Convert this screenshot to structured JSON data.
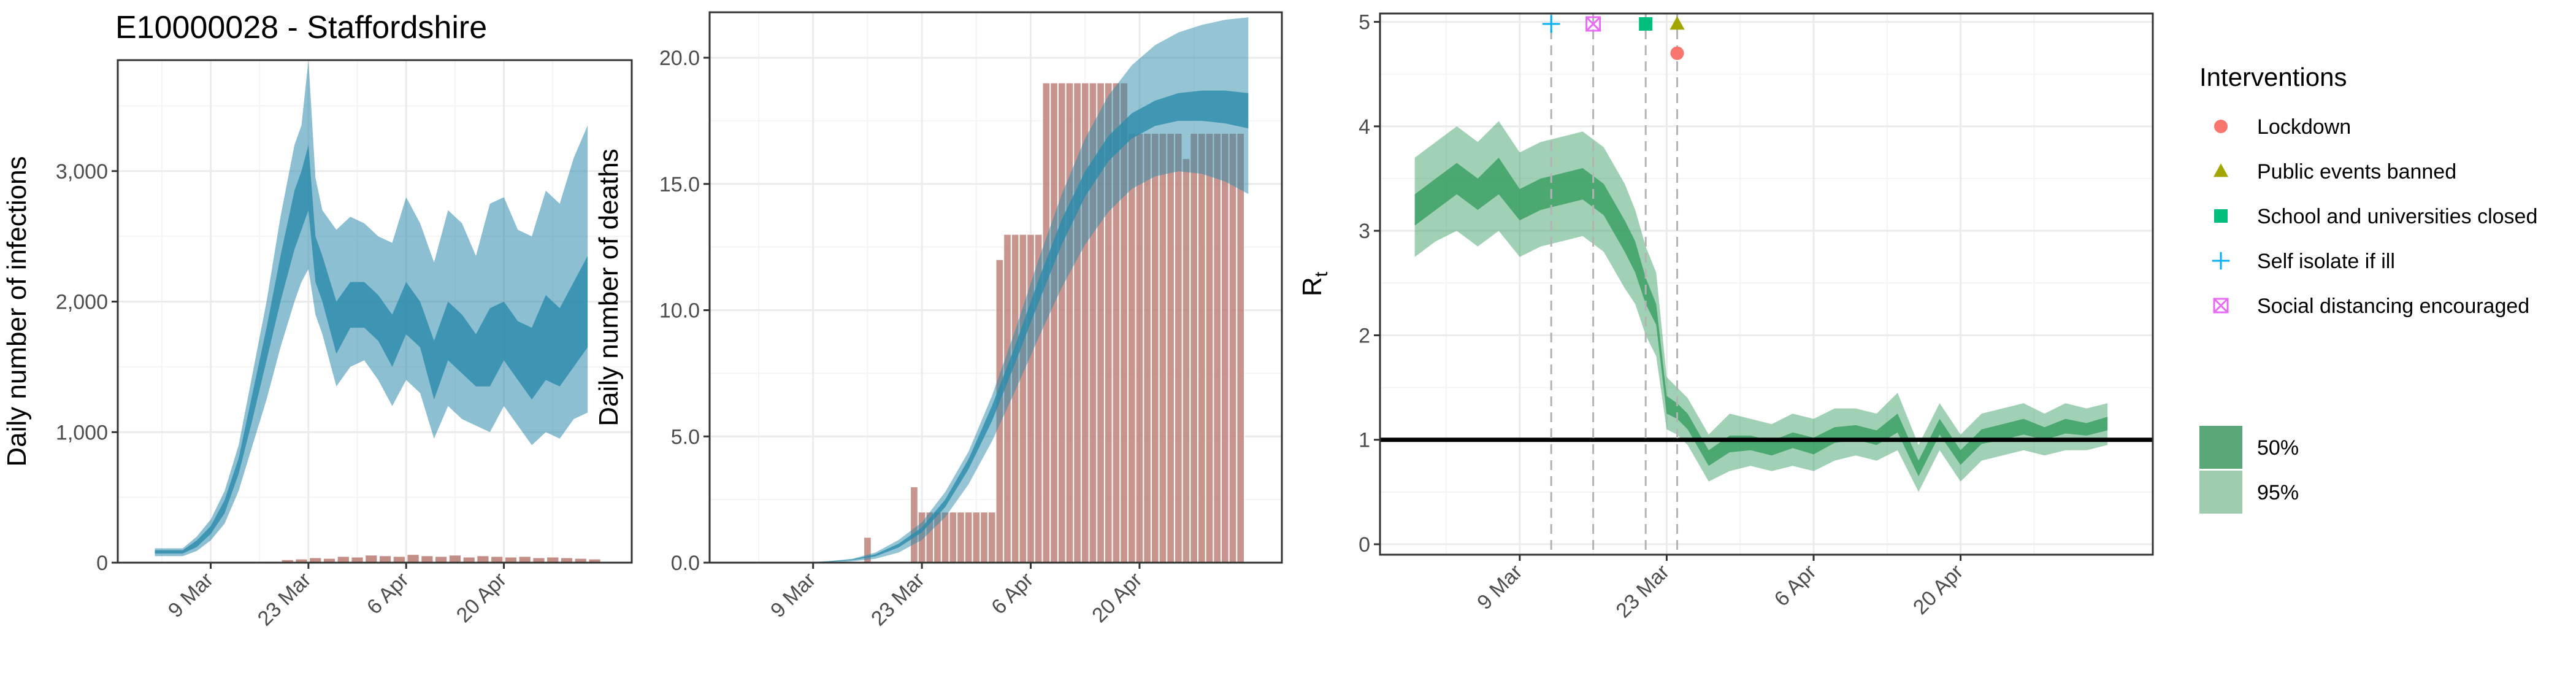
{
  "title": "E10000028 - Staffordshire",
  "colors": {
    "infections_band": "#2b8bab",
    "deaths_bars": "#b97a70",
    "rt_band": "#2f9a5a",
    "grid": "#ebebeb",
    "axis": "#333333",
    "lockdown": "#f8766d",
    "public_events": "#a3a500",
    "schools": "#00bf7d",
    "self_isolate": "#00b0f6",
    "social_distancing": "#e76bf3"
  },
  "dates": {
    "start": "2020-02-28",
    "end": "2020-05-05"
  },
  "chart_data": [
    {
      "type": "area",
      "name": "infections",
      "ylabel": "Daily number of infections",
      "ylim": [
        0,
        3850
      ],
      "yticks": [
        0,
        1000,
        2000,
        3000
      ],
      "ytick_labels": [
        "0",
        "1,000",
        "2,000",
        "3,000"
      ],
      "xticks": [
        "2020-03-09",
        "2020-03-23",
        "2020-04-06",
        "2020-04-20"
      ],
      "xtick_labels": [
        "9 Mar",
        "23 Mar",
        "6 Apr",
        "20 Apr"
      ],
      "grid": true,
      "series": [
        {
          "kind": "band",
          "level": "95%",
          "x": [
            "2020-03-01",
            "2020-03-03",
            "2020-03-05",
            "2020-03-07",
            "2020-03-09",
            "2020-03-11",
            "2020-03-13",
            "2020-03-15",
            "2020-03-17",
            "2020-03-19",
            "2020-03-21",
            "2020-03-22",
            "2020-03-23",
            "2020-03-24",
            "2020-03-25",
            "2020-03-27",
            "2020-03-29",
            "2020-03-31",
            "2020-04-02",
            "2020-04-04",
            "2020-04-06",
            "2020-04-08",
            "2020-04-10",
            "2020-04-12",
            "2020-04-14",
            "2020-04-16",
            "2020-04-18",
            "2020-04-20",
            "2020-04-22",
            "2020-04-24",
            "2020-04-26",
            "2020-04-28",
            "2020-04-30",
            "2020-05-02"
          ],
          "lower": [
            50,
            50,
            50,
            90,
            170,
            300,
            550,
            900,
            1250,
            1650,
            2000,
            2150,
            2250,
            1900,
            1750,
            1350,
            1500,
            1550,
            1400,
            1200,
            1400,
            1300,
            950,
            1200,
            1100,
            1050,
            1000,
            1200,
            1050,
            900,
            1000,
            950,
            1100,
            1150
          ],
          "upper": [
            110,
            110,
            110,
            200,
            330,
            550,
            900,
            1450,
            2000,
            2650,
            3200,
            3350,
            3850,
            2950,
            2700,
            2550,
            2650,
            2600,
            2500,
            2450,
            2800,
            2600,
            2300,
            2700,
            2600,
            2350,
            2750,
            2800,
            2550,
            2500,
            2850,
            2750,
            3100,
            3350
          ]
        },
        {
          "kind": "band",
          "level": "50%",
          "x": [
            "2020-03-01",
            "2020-03-03",
            "2020-03-05",
            "2020-03-07",
            "2020-03-09",
            "2020-03-11",
            "2020-03-13",
            "2020-03-15",
            "2020-03-17",
            "2020-03-19",
            "2020-03-21",
            "2020-03-22",
            "2020-03-23",
            "2020-03-24",
            "2020-03-25",
            "2020-03-27",
            "2020-03-29",
            "2020-03-31",
            "2020-04-02",
            "2020-04-04",
            "2020-04-06",
            "2020-04-08",
            "2020-04-10",
            "2020-04-12",
            "2020-04-14",
            "2020-04-16",
            "2020-04-18",
            "2020-04-20",
            "2020-04-22",
            "2020-04-24",
            "2020-04-26",
            "2020-04-28",
            "2020-04-30",
            "2020-05-02"
          ],
          "lower": [
            70,
            70,
            70,
            120,
            220,
            380,
            680,
            1100,
            1550,
            2000,
            2400,
            2550,
            2700,
            2150,
            2000,
            1600,
            1800,
            1800,
            1700,
            1500,
            1750,
            1650,
            1250,
            1550,
            1450,
            1350,
            1350,
            1550,
            1400,
            1250,
            1400,
            1350,
            1500,
            1650
          ],
          "upper": [
            95,
            95,
            95,
            170,
            280,
            480,
            800,
            1300,
            1800,
            2350,
            2850,
            3000,
            3200,
            2500,
            2350,
            2000,
            2150,
            2150,
            2050,
            1900,
            2150,
            2000,
            1700,
            2000,
            1900,
            1750,
            1950,
            2000,
            1850,
            1800,
            2050,
            1950,
            2150,
            2350
          ]
        },
        {
          "kind": "bars",
          "name": "reported",
          "x": [
            "2020-03-20",
            "2020-03-22",
            "2020-03-24",
            "2020-03-26",
            "2020-03-28",
            "2020-03-30",
            "2020-04-01",
            "2020-04-03",
            "2020-04-05",
            "2020-04-07",
            "2020-04-09",
            "2020-04-11",
            "2020-04-13",
            "2020-04-15",
            "2020-04-17",
            "2020-04-19",
            "2020-04-21",
            "2020-04-23",
            "2020-04-25",
            "2020-04-27",
            "2020-04-29",
            "2020-05-01",
            "2020-05-03"
          ],
          "values": [
            20,
            25,
            35,
            30,
            45,
            40,
            55,
            50,
            45,
            60,
            50,
            45,
            55,
            40,
            50,
            45,
            40,
            45,
            35,
            40,
            35,
            30,
            25
          ]
        }
      ]
    },
    {
      "type": "bar",
      "name": "deaths",
      "ylabel": "Daily number of deaths",
      "ylim": [
        0,
        21.8
      ],
      "yticks": [
        0,
        5,
        10,
        15,
        20
      ],
      "ytick_labels": [
        "0.0",
        "5.0",
        "10.0",
        "15.0",
        "20.0"
      ],
      "xticks": [
        "2020-03-09",
        "2020-03-23",
        "2020-04-06",
        "2020-04-20"
      ],
      "xtick_labels": [
        "9 Mar",
        "23 Mar",
        "6 Apr",
        "20 Apr"
      ],
      "grid": true,
      "bars": {
        "x": [
          "2020-03-16",
          "2020-03-22",
          "2020-03-23",
          "2020-03-24",
          "2020-03-25",
          "2020-03-26",
          "2020-03-27",
          "2020-03-28",
          "2020-03-29",
          "2020-03-30",
          "2020-03-31",
          "2020-04-01",
          "2020-04-02",
          "2020-04-03",
          "2020-04-04",
          "2020-04-05",
          "2020-04-06",
          "2020-04-07",
          "2020-04-08",
          "2020-04-09",
          "2020-04-10",
          "2020-04-11",
          "2020-04-12",
          "2020-04-13",
          "2020-04-14",
          "2020-04-15",
          "2020-04-16",
          "2020-04-17",
          "2020-04-18",
          "2020-04-19",
          "2020-04-20",
          "2020-04-21",
          "2020-04-22",
          "2020-04-23",
          "2020-04-24",
          "2020-04-25",
          "2020-04-26",
          "2020-04-27",
          "2020-04-28",
          "2020-04-29",
          "2020-04-30",
          "2020-05-01",
          "2020-05-02",
          "2020-05-03"
        ],
        "values": [
          1,
          3,
          2,
          2,
          2,
          2,
          2,
          2,
          2,
          2,
          2,
          2,
          12,
          13,
          13,
          13,
          13,
          13,
          19,
          19,
          19,
          19,
          19,
          19,
          19,
          19,
          19,
          19,
          19,
          17,
          17,
          17,
          17,
          17,
          17,
          17,
          16,
          17,
          17,
          17,
          17,
          17,
          17,
          17
        ]
      },
      "bands": [
        {
          "level": "95%",
          "x": [
            "2020-03-02",
            "2020-03-05",
            "2020-03-08",
            "2020-03-11",
            "2020-03-14",
            "2020-03-17",
            "2020-03-20",
            "2020-03-23",
            "2020-03-26",
            "2020-03-29",
            "2020-04-01",
            "2020-04-04",
            "2020-04-07",
            "2020-04-10",
            "2020-04-13",
            "2020-04-16",
            "2020-04-19",
            "2020-04-22",
            "2020-04-25",
            "2020-04-28",
            "2020-05-01",
            "2020-05-04"
          ],
          "lower": [
            0,
            0,
            0,
            0,
            0.05,
            0.15,
            0.4,
            0.9,
            1.8,
            3.1,
            4.8,
            6.8,
            8.9,
            10.9,
            12.6,
            13.9,
            14.8,
            15.3,
            15.5,
            15.4,
            15.1,
            14.6
          ],
          "upper": [
            0,
            0,
            0.02,
            0.06,
            0.15,
            0.4,
            0.9,
            1.6,
            2.8,
            4.4,
            6.6,
            9.2,
            12.0,
            14.6,
            16.8,
            18.5,
            19.7,
            20.5,
            21.0,
            21.3,
            21.5,
            21.6
          ]
        },
        {
          "level": "50%",
          "x": [
            "2020-03-02",
            "2020-03-05",
            "2020-03-08",
            "2020-03-11",
            "2020-03-14",
            "2020-03-17",
            "2020-03-20",
            "2020-03-23",
            "2020-03-26",
            "2020-03-29",
            "2020-04-01",
            "2020-04-04",
            "2020-04-07",
            "2020-04-10",
            "2020-04-13",
            "2020-04-16",
            "2020-04-19",
            "2020-04-22",
            "2020-04-25",
            "2020-04-28",
            "2020-05-01",
            "2020-05-04"
          ],
          "lower": [
            0,
            0,
            0.01,
            0.03,
            0.1,
            0.25,
            0.6,
            1.2,
            2.2,
            3.7,
            5.6,
            7.9,
            10.3,
            12.6,
            14.5,
            15.9,
            16.8,
            17.3,
            17.5,
            17.5,
            17.4,
            17.2
          ],
          "upper": [
            0,
            0,
            0.01,
            0.05,
            0.13,
            0.33,
            0.75,
            1.4,
            2.5,
            4.1,
            6.2,
            8.6,
            11.2,
            13.6,
            15.5,
            16.9,
            17.8,
            18.3,
            18.6,
            18.7,
            18.7,
            18.6
          ]
        }
      ]
    },
    {
      "type": "area",
      "name": "rt",
      "ylabel": "R",
      "ylabel_sub": "t",
      "ylim": [
        -0.1,
        5.08
      ],
      "yticks": [
        0,
        1,
        2,
        3,
        4,
        5
      ],
      "ytick_labels": [
        "0",
        "1",
        "2",
        "3",
        "4",
        "5"
      ],
      "xticks": [
        "2020-03-09",
        "2020-03-23",
        "2020-04-06",
        "2020-04-20"
      ],
      "xtick_labels": [
        "9 Mar",
        "23 Mar",
        "6 Apr",
        "20 Apr"
      ],
      "grid": true,
      "reference_line": 1,
      "bands": [
        {
          "level": "95%",
          "x": [
            "2020-02-28",
            "2020-03-01",
            "2020-03-03",
            "2020-03-05",
            "2020-03-07",
            "2020-03-09",
            "2020-03-11",
            "2020-03-13",
            "2020-03-15",
            "2020-03-17",
            "2020-03-19",
            "2020-03-20",
            "2020-03-21",
            "2020-03-22",
            "2020-03-23",
            "2020-03-24",
            "2020-03-25",
            "2020-03-27",
            "2020-03-29",
            "2020-03-31",
            "2020-04-02",
            "2020-04-04",
            "2020-04-06",
            "2020-04-08",
            "2020-04-10",
            "2020-04-12",
            "2020-04-14",
            "2020-04-16",
            "2020-04-18",
            "2020-04-20",
            "2020-04-22",
            "2020-04-24",
            "2020-04-26",
            "2020-04-28",
            "2020-04-30",
            "2020-05-02",
            "2020-05-04"
          ],
          "lower": [
            2.75,
            2.9,
            3.0,
            2.85,
            3.0,
            2.75,
            2.85,
            2.9,
            2.95,
            2.8,
            2.45,
            2.3,
            2.0,
            1.8,
            1.1,
            1.05,
            0.95,
            0.6,
            0.7,
            0.75,
            0.7,
            0.75,
            0.7,
            0.8,
            0.85,
            0.8,
            0.9,
            0.5,
            0.9,
            0.6,
            0.8,
            0.85,
            0.9,
            0.85,
            0.9,
            0.9,
            0.95
          ],
          "upper": [
            3.7,
            3.85,
            4.0,
            3.85,
            4.05,
            3.75,
            3.85,
            3.9,
            3.95,
            3.8,
            3.45,
            3.2,
            2.85,
            2.6,
            1.6,
            1.5,
            1.4,
            1.05,
            1.25,
            1.2,
            1.15,
            1.25,
            1.2,
            1.3,
            1.3,
            1.25,
            1.45,
            0.95,
            1.35,
            1.05,
            1.25,
            1.3,
            1.35,
            1.25,
            1.35,
            1.3,
            1.35
          ]
        },
        {
          "level": "50%",
          "x": [
            "2020-02-28",
            "2020-03-01",
            "2020-03-03",
            "2020-03-05",
            "2020-03-07",
            "2020-03-09",
            "2020-03-11",
            "2020-03-13",
            "2020-03-15",
            "2020-03-17",
            "2020-03-19",
            "2020-03-20",
            "2020-03-21",
            "2020-03-22",
            "2020-03-23",
            "2020-03-24",
            "2020-03-25",
            "2020-03-27",
            "2020-03-29",
            "2020-03-31",
            "2020-04-02",
            "2020-04-04",
            "2020-04-06",
            "2020-04-08",
            "2020-04-10",
            "2020-04-12",
            "2020-04-14",
            "2020-04-16",
            "2020-04-18",
            "2020-04-20",
            "2020-04-22",
            "2020-04-24",
            "2020-04-26",
            "2020-04-28",
            "2020-04-30",
            "2020-05-02",
            "2020-05-04"
          ],
          "lower": [
            3.05,
            3.2,
            3.35,
            3.2,
            3.35,
            3.1,
            3.2,
            3.25,
            3.3,
            3.15,
            2.8,
            2.6,
            2.3,
            2.1,
            1.25,
            1.2,
            1.1,
            0.75,
            0.88,
            0.9,
            0.85,
            0.92,
            0.86,
            0.97,
            1.0,
            0.95,
            1.07,
            0.65,
            1.05,
            0.76,
            0.96,
            1.0,
            1.05,
            1.0,
            1.06,
            1.04,
            1.09
          ],
          "upper": [
            3.35,
            3.5,
            3.65,
            3.5,
            3.7,
            3.4,
            3.5,
            3.55,
            3.6,
            3.45,
            3.1,
            2.9,
            2.55,
            2.3,
            1.42,
            1.35,
            1.25,
            0.9,
            1.04,
            1.04,
            0.99,
            1.07,
            1.02,
            1.12,
            1.14,
            1.09,
            1.25,
            0.8,
            1.2,
            0.9,
            1.1,
            1.15,
            1.2,
            1.12,
            1.2,
            1.16,
            1.22
          ]
        }
      ],
      "interventions": [
        {
          "label": "Lockdown",
          "date": "2020-03-24",
          "y": 4.7,
          "shape": "circle",
          "color": "#f8766d"
        },
        {
          "label": "Public events banned",
          "date": "2020-03-24",
          "y": 4.98,
          "shape": "triangle",
          "color": "#a3a500"
        },
        {
          "label": "School and universities closed",
          "date": "2020-03-21",
          "y": 4.98,
          "shape": "square",
          "color": "#00bf7d"
        },
        {
          "label": "Self isolate if ill",
          "date": "2020-03-12",
          "y": 4.98,
          "shape": "plus",
          "color": "#00b0f6"
        },
        {
          "label": "Social distancing encouraged",
          "date": "2020-03-16",
          "y": 4.98,
          "shape": "boxx",
          "color": "#e76bf3"
        }
      ]
    }
  ],
  "legend": {
    "title": "Interventions",
    "items": [
      {
        "label": "Lockdown",
        "shape": "circle",
        "color": "#f8766d"
      },
      {
        "label": "Public events banned",
        "shape": "triangle",
        "color": "#a3a500"
      },
      {
        "label": "School and universities closed",
        "shape": "square",
        "color": "#00bf7d"
      },
      {
        "label": "Self isolate if ill",
        "shape": "plus",
        "color": "#00b0f6"
      },
      {
        "label": "Social distancing encouraged",
        "shape": "boxx",
        "color": "#e76bf3"
      }
    ],
    "bands": [
      {
        "label": "50%",
        "color": "#5aa877"
      },
      {
        "label": "95%",
        "color": "#9fcbaf"
      }
    ]
  }
}
